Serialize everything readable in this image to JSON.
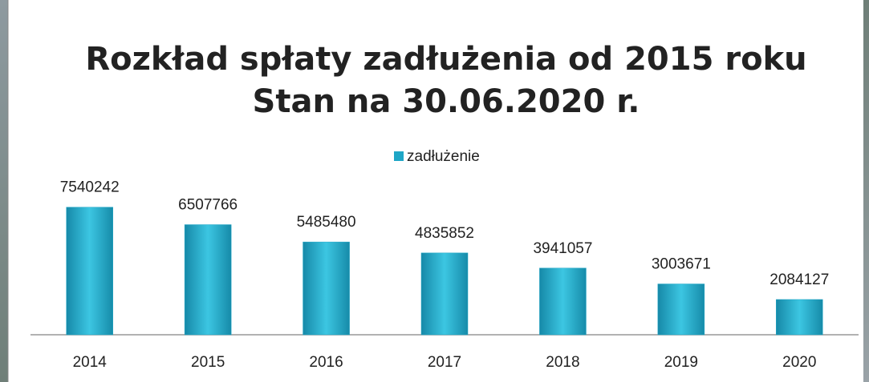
{
  "chart_data": {
    "type": "bar",
    "title": [
      "Rozkład spłaty zadłużenia od 2015 roku",
      "Stan na 30.06.2020 r."
    ],
    "categories": [
      "2014",
      "2015",
      "2016",
      "2017",
      "2018",
      "2019",
      "2020"
    ],
    "series": [
      {
        "name": "zadłużenie",
        "color": "#1ea6c6",
        "values": [
          7540242,
          6507766,
          5485480,
          4835852,
          3941057,
          3003671,
          2084127
        ]
      }
    ],
    "ylim": [
      0,
      8000000
    ],
    "legend": "top"
  }
}
